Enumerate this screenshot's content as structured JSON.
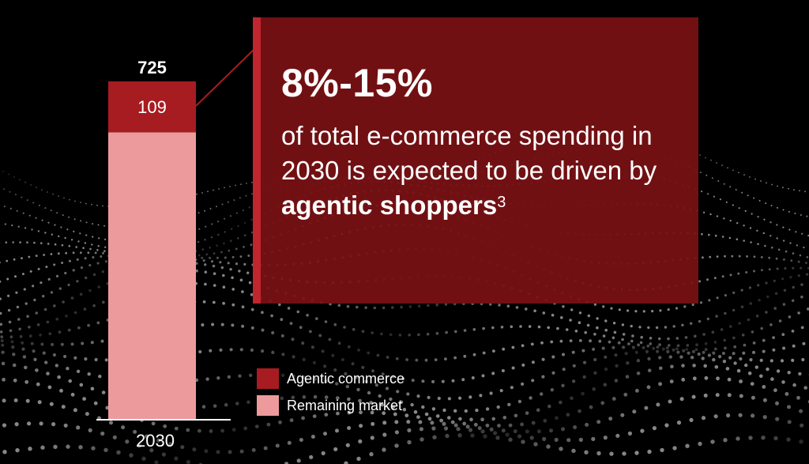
{
  "chart_data": {
    "type": "bar",
    "stacked": true,
    "categories": [
      "2030"
    ],
    "series": [
      {
        "name": "Remaining market",
        "values": [
          616
        ],
        "color": "#ec9a9c"
      },
      {
        "name": "Agentic commerce",
        "values": [
          109
        ],
        "color": "#a71c21"
      }
    ],
    "segment_labels": [
      "109"
    ],
    "totals": [
      "725"
    ],
    "ylim": [
      0,
      725
    ],
    "legend_position": "bottom-right"
  },
  "callout": {
    "percent": "8%-15%",
    "text_before": "of total e-commerce spending in 2030 is expected to be driven by ",
    "text_bold": "agentic shoppers",
    "superscript": "3"
  },
  "colors": {
    "background": "#000000",
    "callout_fill": "#7a1114",
    "callout_accent": "#c0262d",
    "agentic": "#a71c21",
    "remaining": "#ec9a9c"
  }
}
